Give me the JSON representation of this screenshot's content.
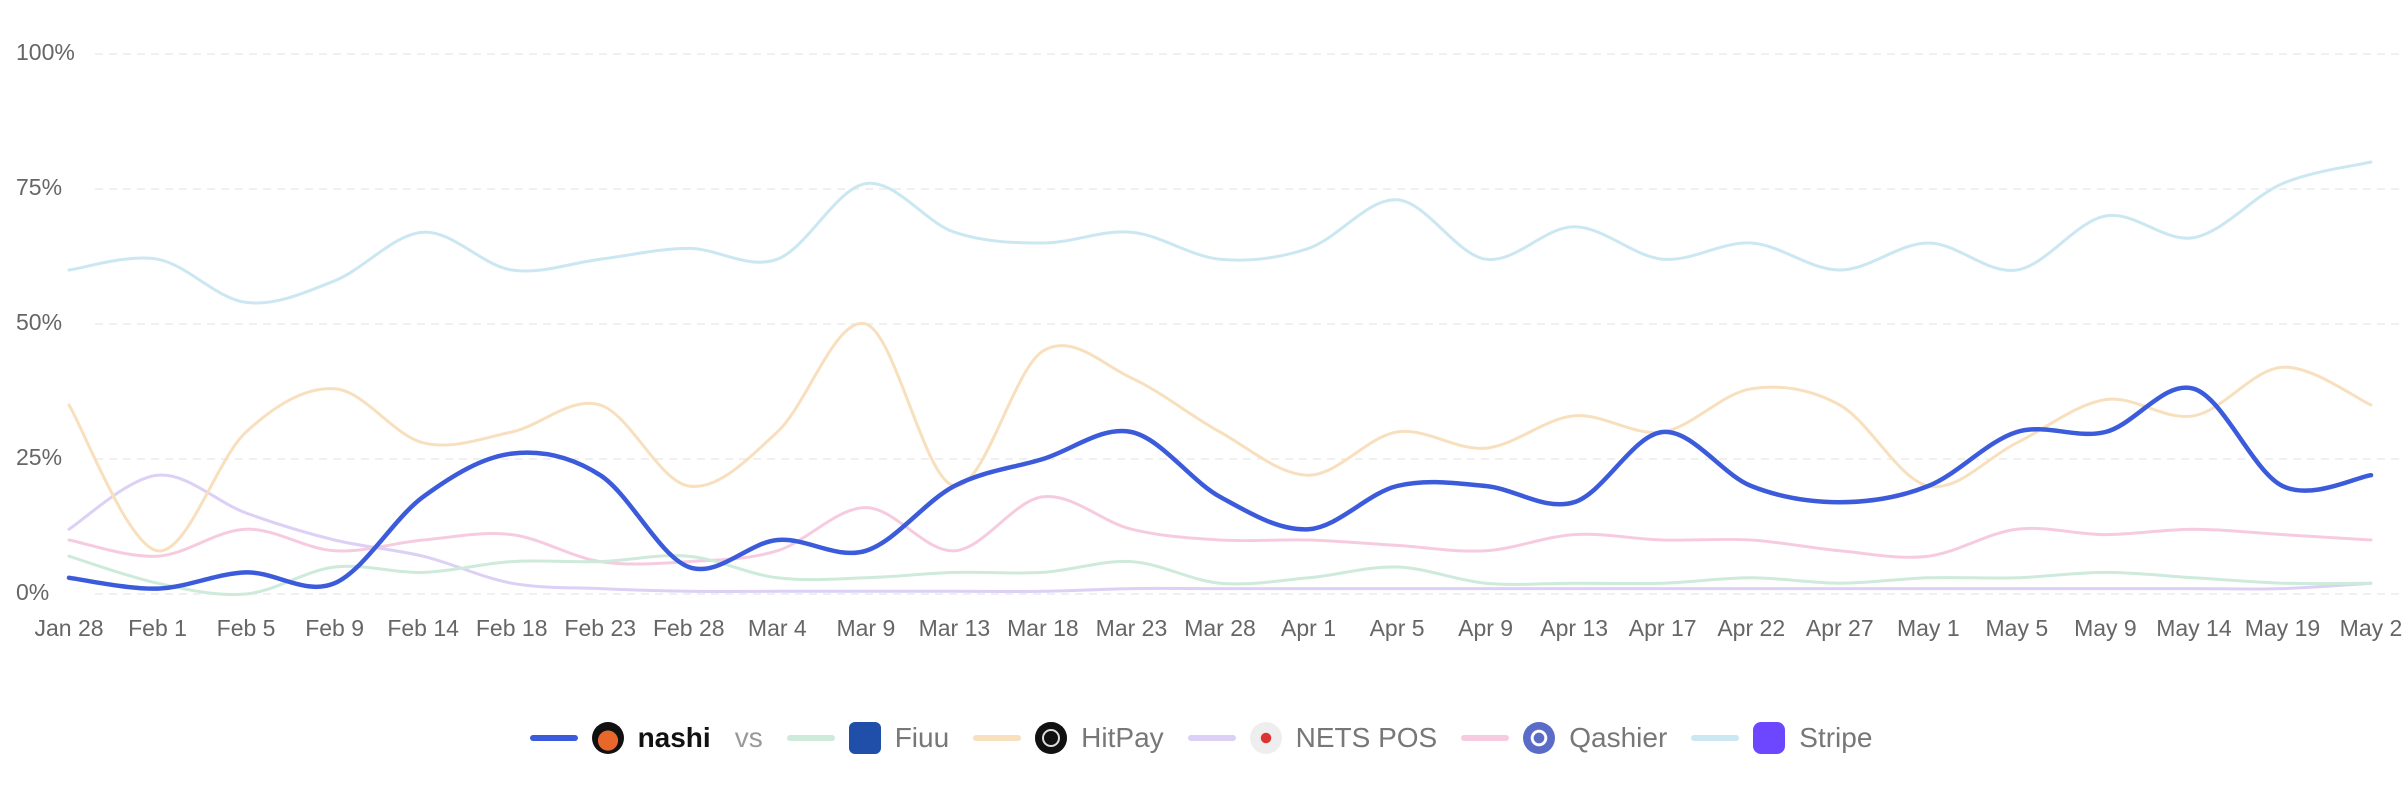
{
  "chart_data": {
    "type": "line",
    "categories": [
      "Jan 28",
      "Feb 1",
      "Feb 5",
      "Feb 9",
      "Feb 14",
      "Feb 18",
      "Feb 23",
      "Feb 28",
      "Mar 4",
      "Mar 9",
      "Mar 13",
      "Mar 18",
      "Mar 23",
      "Mar 28",
      "Apr 1",
      "Apr 5",
      "Apr 9",
      "Apr 13",
      "Apr 17",
      "Apr 22",
      "Apr 27",
      "May 1",
      "May 5",
      "May 9",
      "May 14",
      "May 19",
      "May 2"
    ],
    "ylim": [
      0,
      100
    ],
    "yticks": [
      {
        "value": 0,
        "label": "0%"
      },
      {
        "value": 25,
        "label": "25%"
      },
      {
        "value": 50,
        "label": "50%"
      },
      {
        "value": 75,
        "label": "75%"
      },
      {
        "value": 100,
        "label": "100%"
      }
    ],
    "grid": true,
    "legend_separator": "vs",
    "series": [
      {
        "name": "nashi",
        "color": "#3b5bdb",
        "values": [
          3,
          1,
          4,
          2,
          18,
          26,
          22,
          5,
          10,
          8,
          20,
          25,
          30,
          18,
          12,
          20,
          20,
          17,
          30,
          20,
          17,
          20,
          30,
          30,
          38,
          20,
          22
        ]
      },
      {
        "name": "Fiuu",
        "color": "#cdeadb",
        "values": [
          7,
          2,
          0,
          5,
          4,
          6,
          6,
          7,
          3,
          3,
          4,
          4,
          6,
          2,
          3,
          5,
          2,
          2,
          2,
          3,
          2,
          3,
          3,
          4,
          3,
          2,
          2
        ]
      },
      {
        "name": "HitPay",
        "color": "#f8dfbd",
        "values": [
          35,
          8,
          30,
          38,
          28,
          30,
          35,
          20,
          30,
          50,
          20,
          45,
          40,
          30,
          22,
          30,
          27,
          33,
          30,
          38,
          35,
          20,
          28,
          36,
          33,
          42,
          35
        ]
      },
      {
        "name": "NETS POS",
        "color": "#dcd0f6",
        "values": [
          12,
          22,
          15,
          10,
          7,
          2,
          1,
          0.5,
          0.5,
          0.5,
          0.5,
          0.5,
          1,
          1,
          1,
          1,
          1,
          1,
          1,
          1,
          1,
          1,
          1,
          1,
          1,
          1,
          2
        ]
      },
      {
        "name": "Qashier",
        "color": "#f7cbdf",
        "values": [
          10,
          7,
          12,
          8,
          10,
          11,
          6,
          6,
          8,
          16,
          8,
          18,
          12,
          10,
          10,
          9,
          8,
          11,
          10,
          10,
          8,
          7,
          12,
          11,
          12,
          11,
          10
        ]
      },
      {
        "name": "Stripe",
        "color": "#cbe7f1",
        "values": [
          60,
          62,
          54,
          58,
          67,
          60,
          62,
          64,
          62,
          76,
          67,
          65,
          67,
          62,
          64,
          73,
          62,
          68,
          62,
          65,
          60,
          65,
          60,
          70,
          66,
          76,
          80
        ]
      }
    ]
  }
}
